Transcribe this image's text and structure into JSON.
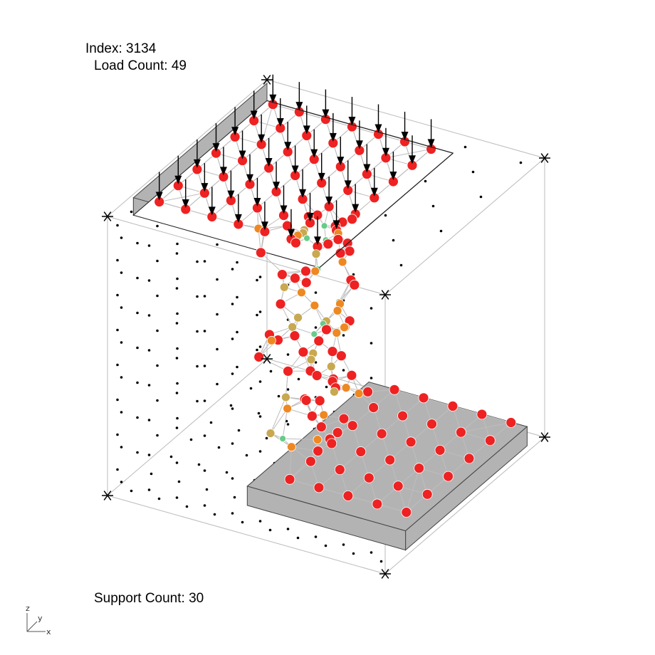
{
  "header": {
    "index_label": "Index:",
    "index_value": "3134",
    "load_label": "Load Count:",
    "load_value": "49"
  },
  "footer": {
    "support_label": "Support Count:",
    "support_value": "30"
  },
  "axis_gizmo": {
    "z": "z",
    "y": "y",
    "x": "x"
  },
  "colors": {
    "high_stress": "#ee2222",
    "mid_stress": "#ee8822",
    "low_mid_stress": "#c8a850",
    "low_stress": "#66cc88",
    "plate": "#b3b3b3",
    "grid_point": "#000000",
    "member": "#bdbdbd",
    "load_arrow": "#000000",
    "bounding_box": "#bbbbbb"
  },
  "structure": {
    "load_grid": "7x7",
    "support_grid": "6x5",
    "tiers": 8
  }
}
